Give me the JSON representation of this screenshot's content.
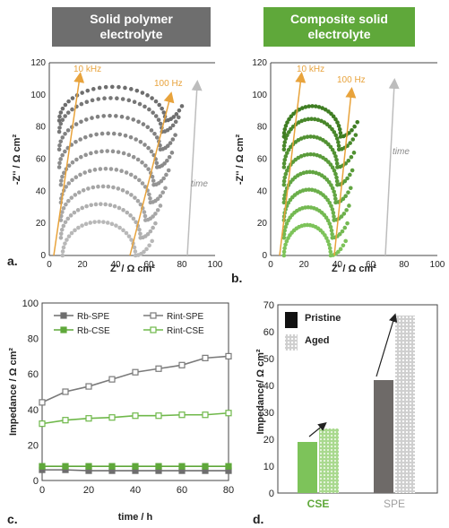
{
  "banners": {
    "a_line1": "Solid polymer",
    "a_line2": "electrolyte",
    "b_line1": "Composite solid",
    "b_line2": "electrolyte"
  },
  "panel_labels": {
    "a": "a.",
    "b": "b.",
    "c": "c.",
    "d": "d."
  },
  "colors": {
    "spe_dark": "#6e6e6e",
    "spe_light": "#b8b8b8",
    "cse_dark": "#3f7d22",
    "cse_light": "#7dc35a",
    "annotation": "#e8a33c",
    "time_arrow": "#bdbdbd"
  },
  "chart_data": [
    {
      "id": "a",
      "type": "scatter",
      "title": "",
      "xlabel": "Z' / Ω cm²",
      "ylabel": "-Z'' / Ω cm²",
      "xlim": [
        0,
        100
      ],
      "ylim": [
        0,
        120
      ],
      "xticks": [
        0,
        20,
        40,
        60,
        80,
        100
      ],
      "yticks": [
        0,
        20,
        40,
        60,
        80,
        100,
        120
      ],
      "annotations": [
        "10 kHz",
        "100 Hz",
        "time"
      ],
      "series": [
        {
          "offset": 0,
          "x_start": 8,
          "x_end": 52,
          "tail_end": 62
        },
        {
          "offset": 11,
          "x_start": 7,
          "x_end": 55,
          "tail_end": 64
        },
        {
          "offset": 22,
          "x_start": 7,
          "x_end": 58,
          "tail_end": 67
        },
        {
          "offset": 33,
          "x_start": 7,
          "x_end": 61,
          "tail_end": 70
        },
        {
          "offset": 44,
          "x_start": 7,
          "x_end": 63,
          "tail_end": 72
        },
        {
          "offset": 55,
          "x_start": 6,
          "x_end": 65,
          "tail_end": 74
        },
        {
          "offset": 66,
          "x_start": 6,
          "x_end": 67,
          "tail_end": 76
        },
        {
          "offset": 77,
          "x_start": 6,
          "x_end": 68,
          "tail_end": 78
        },
        {
          "offset": 84,
          "x_start": 6,
          "x_end": 70,
          "tail_end": 80
        }
      ],
      "arc_peak": 21
    },
    {
      "id": "b",
      "type": "scatter",
      "title": "",
      "xlabel": "Z' / Ω cm²",
      "ylabel": "-Z'' / Ω cm²",
      "xlim": [
        0,
        100
      ],
      "ylim": [
        0,
        120
      ],
      "xticks": [
        0,
        20,
        40,
        60,
        80,
        100
      ],
      "yticks": [
        0,
        20,
        40,
        60,
        80,
        100,
        120
      ],
      "annotations": [
        "10 kHz",
        "100 Hz",
        "time"
      ],
      "series": [
        {
          "offset": 0,
          "x_start": 8,
          "x_end": 36,
          "tail_end": 45
        },
        {
          "offset": 11,
          "x_start": 8,
          "x_end": 37,
          "tail_end": 46
        },
        {
          "offset": 22,
          "x_start": 8,
          "x_end": 38,
          "tail_end": 47
        },
        {
          "offset": 33,
          "x_start": 8,
          "x_end": 39,
          "tail_end": 48
        },
        {
          "offset": 44,
          "x_start": 8,
          "x_end": 40,
          "tail_end": 49
        },
        {
          "offset": 55,
          "x_start": 8,
          "x_end": 40,
          "tail_end": 50
        },
        {
          "offset": 66,
          "x_start": 8,
          "x_end": 41,
          "tail_end": 51
        },
        {
          "offset": 74,
          "x_start": 8,
          "x_end": 42,
          "tail_end": 52
        }
      ],
      "arc_peak": 19
    },
    {
      "id": "c",
      "type": "line",
      "title": "",
      "xlabel": "time / h",
      "ylabel": "Impedance / Ω cm²",
      "xlim": [
        0,
        80
      ],
      "ylim": [
        0,
        100
      ],
      "xticks": [
        0,
        20,
        40,
        60,
        80
      ],
      "yticks": [
        0,
        20,
        40,
        60,
        80,
        100
      ],
      "x": [
        0,
        10,
        20,
        30,
        40,
        50,
        60,
        70,
        80
      ],
      "legend": "top",
      "series": [
        {
          "name": "Rb-SPE",
          "marker": "filled",
          "color": "#6e6e6e",
          "values": [
            6,
            6,
            5.5,
            5.5,
            5.5,
            5.5,
            5.5,
            5.5,
            5.5
          ]
        },
        {
          "name": "Rint-SPE",
          "marker": "open",
          "color": "#7a7a7a",
          "values": [
            44,
            50,
            53,
            57,
            61,
            63,
            65,
            69,
            70
          ]
        },
        {
          "name": "Rb-CSE",
          "marker": "filled",
          "color": "#5fa83a",
          "values": [
            8,
            8,
            8,
            8,
            8,
            8,
            8,
            8,
            8
          ]
        },
        {
          "name": "Rint-CSE",
          "marker": "open",
          "color": "#6fb84a",
          "values": [
            32,
            34,
            35,
            35.5,
            36.5,
            36.5,
            37,
            37,
            38
          ]
        }
      ]
    },
    {
      "id": "d",
      "type": "bar",
      "title": "",
      "xlabel": "",
      "ylabel": "Impedance/ Ω cm²",
      "ylim": [
        0,
        70
      ],
      "yticks": [
        0,
        10,
        20,
        30,
        40,
        50,
        60,
        70
      ],
      "categories": [
        "CSE",
        "SPE"
      ],
      "legend": "top-left",
      "series": [
        {
          "name": "Pristine",
          "values": [
            19,
            42
          ]
        },
        {
          "name": "Aged",
          "values": [
            24,
            66
          ]
        }
      ]
    }
  ]
}
